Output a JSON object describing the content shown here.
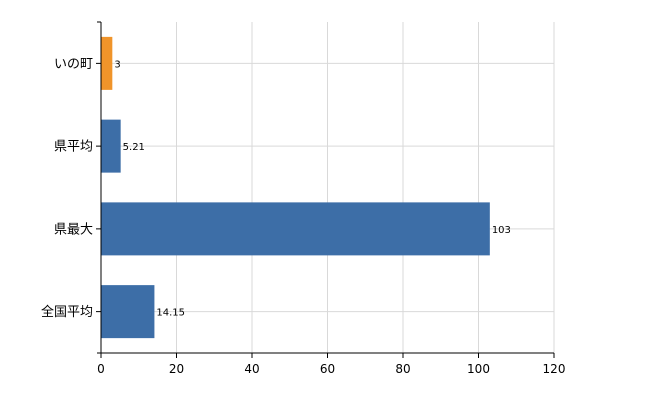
{
  "chart_data": {
    "type": "bar",
    "orientation": "horizontal",
    "categories": [
      "いの町",
      "県平均",
      "県最大",
      "全国平均"
    ],
    "values": [
      3,
      5.21,
      103,
      14.15
    ],
    "data_labels": [
      "3",
      "5.21",
      "103",
      "14.15"
    ],
    "bar_colors": [
      "#f0942a",
      "#3d6ea7",
      "#3d6ea7",
      "#3d6ea7"
    ],
    "xlim": [
      0,
      120
    ],
    "x_ticks": [
      0,
      20,
      40,
      60,
      80,
      100,
      120
    ],
    "grid": true,
    "grid_color": "#d9d9d9",
    "axis_color": "#000000"
  }
}
